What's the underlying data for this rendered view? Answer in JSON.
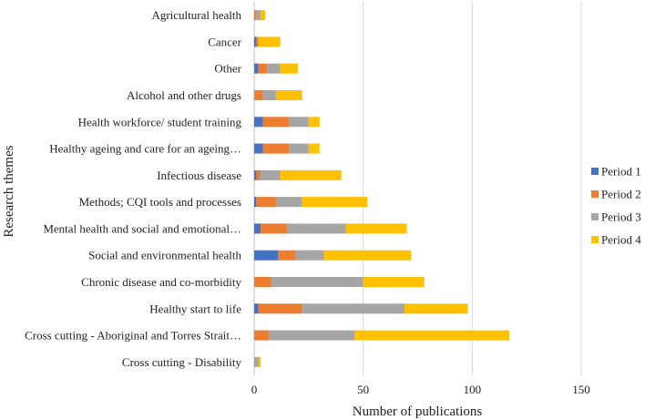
{
  "chart_data": {
    "type": "bar",
    "orientation": "horizontal",
    "stacked": true,
    "title": "",
    "xlabel": "Number of publications",
    "ylabel": "Research themes",
    "xlim": [
      0,
      150
    ],
    "xticks": [
      0,
      50,
      100,
      150
    ],
    "grid": true,
    "legend_position": "right",
    "categories": [
      "Agricultural health",
      "Cancer",
      "Other",
      "Alcohol and other drugs",
      "Health workforce/ student training",
      "Healthy ageing and care for an ageing…",
      "Infectious disease",
      "Methods; CQI tools and processes",
      "Mental health and social and emotional…",
      "Social and environmental health",
      "Chronic disease and co-morbidity",
      "Healthy start to life",
      "Cross cutting - Aboriginal and Torres Strait…",
      "Cross cutting - Disability"
    ],
    "series": [
      {
        "name": "Period 1",
        "color": "#4472C4",
        "values": [
          0,
          1,
          2,
          0,
          4,
          4,
          1,
          1,
          3,
          11,
          0,
          2,
          0,
          0
        ]
      },
      {
        "name": "Period 2",
        "color": "#ED7D31",
        "values": [
          1,
          1,
          4,
          4,
          12,
          12,
          2,
          9,
          12,
          8,
          8,
          20,
          7,
          0
        ]
      },
      {
        "name": "Period 3",
        "color": "#A5A5A5",
        "values": [
          2,
          0,
          6,
          6,
          9,
          9,
          9,
          12,
          27,
          13,
          42,
          47,
          39,
          2
        ]
      },
      {
        "name": "Period 4",
        "color": "#FFC000",
        "values": [
          2,
          10,
          8,
          12,
          5,
          5,
          28,
          30,
          28,
          40,
          28,
          29,
          71,
          1
        ]
      }
    ]
  }
}
